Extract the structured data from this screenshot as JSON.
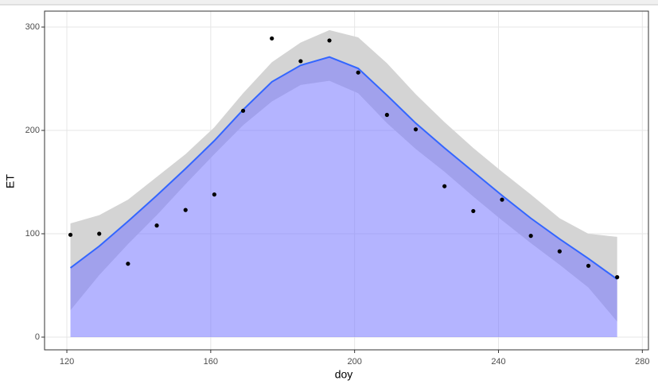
{
  "chart_data": {
    "type": "scatter",
    "x_label": "doy",
    "y_label": "ET",
    "xlim": [
      113.8,
      281.7
    ],
    "ylim": [
      -12.3,
      315.4
    ],
    "xticks": [
      120,
      160,
      200,
      240,
      280
    ],
    "yticks": [
      0,
      100,
      200,
      300
    ],
    "grid": true,
    "points": {
      "color": "#000000",
      "x": [
        121,
        129,
        137,
        145,
        153,
        161,
        169,
        177,
        185,
        193,
        201,
        209,
        217,
        225,
        233,
        241,
        249,
        257,
        265,
        273
      ],
      "values": [
        99,
        100,
        71,
        108,
        123,
        138,
        219,
        289,
        267,
        287,
        256,
        215,
        201,
        146,
        122,
        133,
        98,
        83,
        69,
        58
      ]
    },
    "smooth": {
      "color": "#3366ff",
      "band_color": "#d4d4d4",
      "fill_color": "#7777ff",
      "x": [
        121,
        129,
        137,
        145,
        153,
        161,
        169,
        177,
        185,
        193,
        201,
        209,
        217,
        225,
        233,
        241,
        249,
        257,
        265,
        273
      ],
      "values": [
        67,
        88,
        112,
        137,
        163,
        190,
        220,
        247,
        263,
        271,
        260,
        234,
        207,
        183,
        160,
        137,
        115,
        95,
        76,
        56
      ],
      "upper": [
        110,
        118,
        133,
        155,
        177,
        203,
        236,
        266,
        285,
        297,
        290,
        265,
        235,
        208,
        183,
        160,
        138,
        115,
        100,
        97
      ],
      "lower": [
        26,
        60,
        90,
        118,
        148,
        177,
        205,
        228,
        244,
        248,
        236,
        207,
        182,
        160,
        136,
        113,
        91,
        70,
        48,
        15
      ]
    }
  }
}
